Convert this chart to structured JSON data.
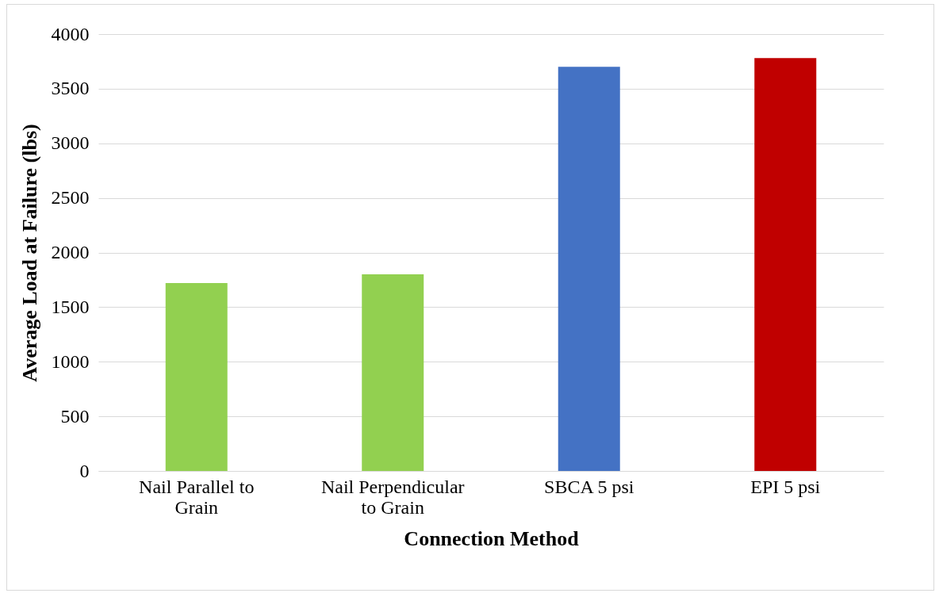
{
  "chart_data": {
    "type": "bar",
    "xlabel": "Connection Method",
    "ylabel": "Average Load at Failure (lbs)",
    "categories": [
      "Nail Parallel to Grain",
      "Nail Perpendicular to Grain",
      "SBCA 5 psi",
      "EPI 5 psi"
    ],
    "values": [
      1720,
      1800,
      3700,
      3780
    ],
    "colors": [
      "#92d050",
      "#92d050",
      "#4472c4",
      "#c00000"
    ],
    "ylim": [
      0,
      4000
    ],
    "yticks": [
      0,
      500,
      1000,
      1500,
      2000,
      2500,
      3000,
      3500,
      4000
    ],
    "grid": "y"
  }
}
